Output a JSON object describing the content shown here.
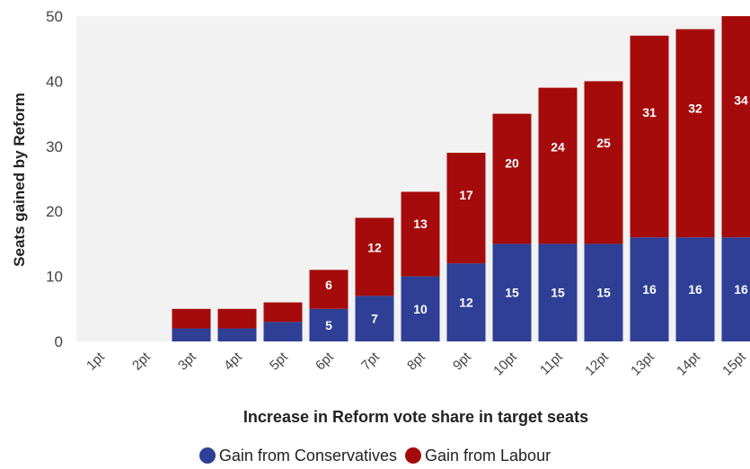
{
  "colors": {
    "conservatives": "#2e3f95",
    "labour": "#a50b0b",
    "plot_background": "#f2f2f2"
  },
  "chart_data": {
    "type": "bar",
    "stacked": true,
    "categories": [
      "1pt",
      "2pt",
      "3pt",
      "4pt",
      "5pt",
      "6pt",
      "7pt",
      "8pt",
      "9pt",
      "10pt",
      "11pt",
      "12pt",
      "13pt",
      "14pt",
      "15pt"
    ],
    "series": [
      {
        "name": "Gain from Conservatives",
        "color": "#2e3f95",
        "values": [
          0,
          0,
          2,
          2,
          3,
          5,
          7,
          10,
          12,
          15,
          15,
          15,
          16,
          16,
          16
        ],
        "data_labels": [
          null,
          null,
          null,
          null,
          null,
          "5",
          "7",
          "10",
          "12",
          "15",
          "15",
          "15",
          "16",
          "16",
          "16"
        ]
      },
      {
        "name": "Gain from Labour",
        "color": "#a50b0b",
        "values": [
          0,
          0,
          3,
          3,
          3,
          6,
          12,
          13,
          17,
          20,
          24,
          25,
          31,
          32,
          34
        ],
        "data_labels": [
          null,
          null,
          null,
          null,
          null,
          "6",
          "12",
          "13",
          "17",
          "20",
          "24",
          "25",
          "31",
          "32",
          "34"
        ]
      }
    ],
    "xlabel": "Increase in Reform vote share in target seats",
    "ylabel": "Seats gained by Reform",
    "ylim": [
      0,
      50
    ],
    "yticks": [
      "0",
      "10",
      "20",
      "30",
      "40",
      "50"
    ],
    "grid": false,
    "legend_position": "bottom"
  },
  "legend": {
    "items": [
      {
        "label": "Gain from Conservatives"
      },
      {
        "label": "Gain from Labour"
      }
    ]
  }
}
